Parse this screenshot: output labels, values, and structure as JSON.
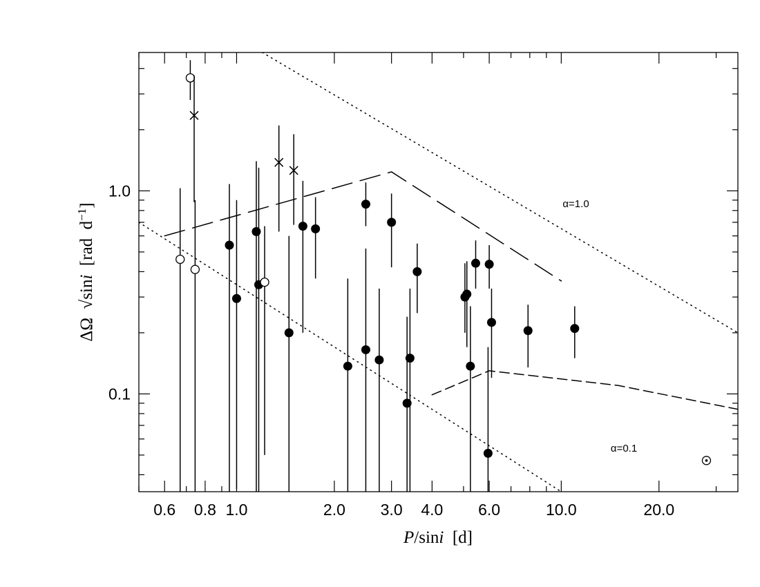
{
  "chart_data": {
    "type": "scatter",
    "xlabel_parts": [
      "P",
      "/sin",
      "i",
      "  [d]"
    ],
    "ylabel_parts": [
      "ΔΩ  √sin",
      "i",
      "  [rad  d",
      "−1",
      "]"
    ],
    "xscale": "log",
    "yscale": "log",
    "xlim": [
      0.5,
      35
    ],
    "ylim": [
      0.033,
      4.8
    ],
    "xtick_values": [
      0.6,
      0.8,
      1.0,
      2.0,
      3.0,
      4.0,
      6.0,
      10.0,
      20.0
    ],
    "xtick_labels": [
      "0.6",
      "0.8",
      "1.0",
      "2.0",
      "3.0",
      "4.0",
      "6.0",
      "10.0",
      "20.0"
    ],
    "ytick_values": [
      0.1,
      1.0
    ],
    "ytick_labels": [
      "0.1",
      "1.0"
    ],
    "grid": false,
    "series": [
      {
        "marker": "filled-circle",
        "points": [
          {
            "x": 0.95,
            "y": 0.54,
            "ylo": 0.0,
            "yhi": 1.08
          },
          {
            "x": 1.0,
            "y": 0.295,
            "ylo": 0.034,
            "yhi": 0.9
          },
          {
            "x": 1.15,
            "y": 0.63,
            "ylo": 0.0,
            "yhi": 1.4
          },
          {
            "x": 1.17,
            "y": 0.345,
            "ylo": 0.0,
            "yhi": 1.3
          },
          {
            "x": 1.45,
            "y": 0.2,
            "ylo": 0.0,
            "yhi": 0.6
          },
          {
            "x": 1.6,
            "y": 0.67,
            "ylo": 0.2,
            "yhi": 1.12
          },
          {
            "x": 1.75,
            "y": 0.65,
            "ylo": 0.37,
            "yhi": 0.93
          },
          {
            "x": 2.2,
            "y": 0.137,
            "ylo": 0.0,
            "yhi": 0.37
          },
          {
            "x": 2.5,
            "y": 0.86,
            "ylo": 0.67,
            "yhi": 1.1
          },
          {
            "x": 2.5,
            "y": 0.165,
            "ylo": 0.0,
            "yhi": 0.52
          },
          {
            "x": 2.75,
            "y": 0.147,
            "ylo": 0.0,
            "yhi": 0.33
          },
          {
            "x": 3.0,
            "y": 0.7,
            "ylo": 0.42,
            "yhi": 0.97
          },
          {
            "x": 3.35,
            "y": 0.09,
            "ylo": 0.0,
            "yhi": 0.24
          },
          {
            "x": 3.42,
            "y": 0.15,
            "ylo": 0.0,
            "yhi": 0.33
          },
          {
            "x": 3.6,
            "y": 0.4,
            "ylo": 0.25,
            "yhi": 0.55
          },
          {
            "x": 5.05,
            "y": 0.3,
            "ylo": 0.2,
            "yhi": 0.44
          },
          {
            "x": 5.12,
            "y": 0.31,
            "ylo": 0.17,
            "yhi": 0.45
          },
          {
            "x": 5.25,
            "y": 0.137,
            "ylo": 0.0,
            "yhi": 0.27
          },
          {
            "x": 5.45,
            "y": 0.44,
            "ylo": 0.33,
            "yhi": 0.57
          },
          {
            "x": 5.95,
            "y": 0.051,
            "ylo": 0.0,
            "yhi": 0.17
          },
          {
            "x": 6.0,
            "y": 0.435,
            "ylo": 0.33,
            "yhi": 0.54
          },
          {
            "x": 6.1,
            "y": 0.225,
            "ylo": 0.12,
            "yhi": 0.33
          },
          {
            "x": 7.9,
            "y": 0.205,
            "ylo": 0.135,
            "yhi": 0.275
          },
          {
            "x": 11.0,
            "y": 0.21,
            "ylo": 0.15,
            "yhi": 0.27
          }
        ]
      },
      {
        "marker": "open-circle",
        "points": [
          {
            "x": 0.67,
            "y": 0.46,
            "ylo": 0.0,
            "yhi": 1.03
          },
          {
            "x": 0.72,
            "y": 3.6,
            "ylo": 2.8,
            "yhi": 4.4
          },
          {
            "x": 0.745,
            "y": 0.41,
            "ylo": 0.0,
            "yhi": 0.9
          },
          {
            "x": 1.22,
            "y": 0.355,
            "ylo": 0.05,
            "yhi": 0.67
          }
        ]
      },
      {
        "marker": "cross",
        "points": [
          {
            "x": 0.74,
            "y": 2.35,
            "ylo": 0.88,
            "yhi": 3.7
          },
          {
            "x": 1.35,
            "y": 1.38,
            "ylo": 0.63,
            "yhi": 2.1
          },
          {
            "x": 1.5,
            "y": 1.26,
            "ylo": 0.68,
            "yhi": 1.9
          }
        ]
      },
      {
        "marker": "dot-circle",
        "points": [
          {
            "x": 28.0,
            "y": 0.047
          }
        ]
      }
    ],
    "lines": [
      {
        "style": "dotted",
        "points": [
          [
            1.2,
            5.0
          ],
          [
            35.0,
            0.2
          ]
        ]
      },
      {
        "style": "dotted",
        "points": [
          [
            0.5,
            0.7
          ],
          [
            10.0,
            0.031
          ]
        ]
      },
      {
        "style": "long-dashed",
        "points": [
          [
            0.6,
            0.6
          ],
          [
            3.0,
            1.24
          ],
          [
            10.0,
            0.36
          ]
        ]
      },
      {
        "style": "short-dashed",
        "points": [
          [
            4.0,
            0.099
          ],
          [
            6.0,
            0.13
          ],
          [
            15.0,
            0.11
          ],
          [
            35.0,
            0.084
          ]
        ]
      }
    ],
    "annotations": [
      {
        "text": "α=1.0",
        "x": 10.1,
        "y": 0.83
      },
      {
        "text": "α=0.1",
        "x": 14.2,
        "y": 0.052
      }
    ]
  }
}
